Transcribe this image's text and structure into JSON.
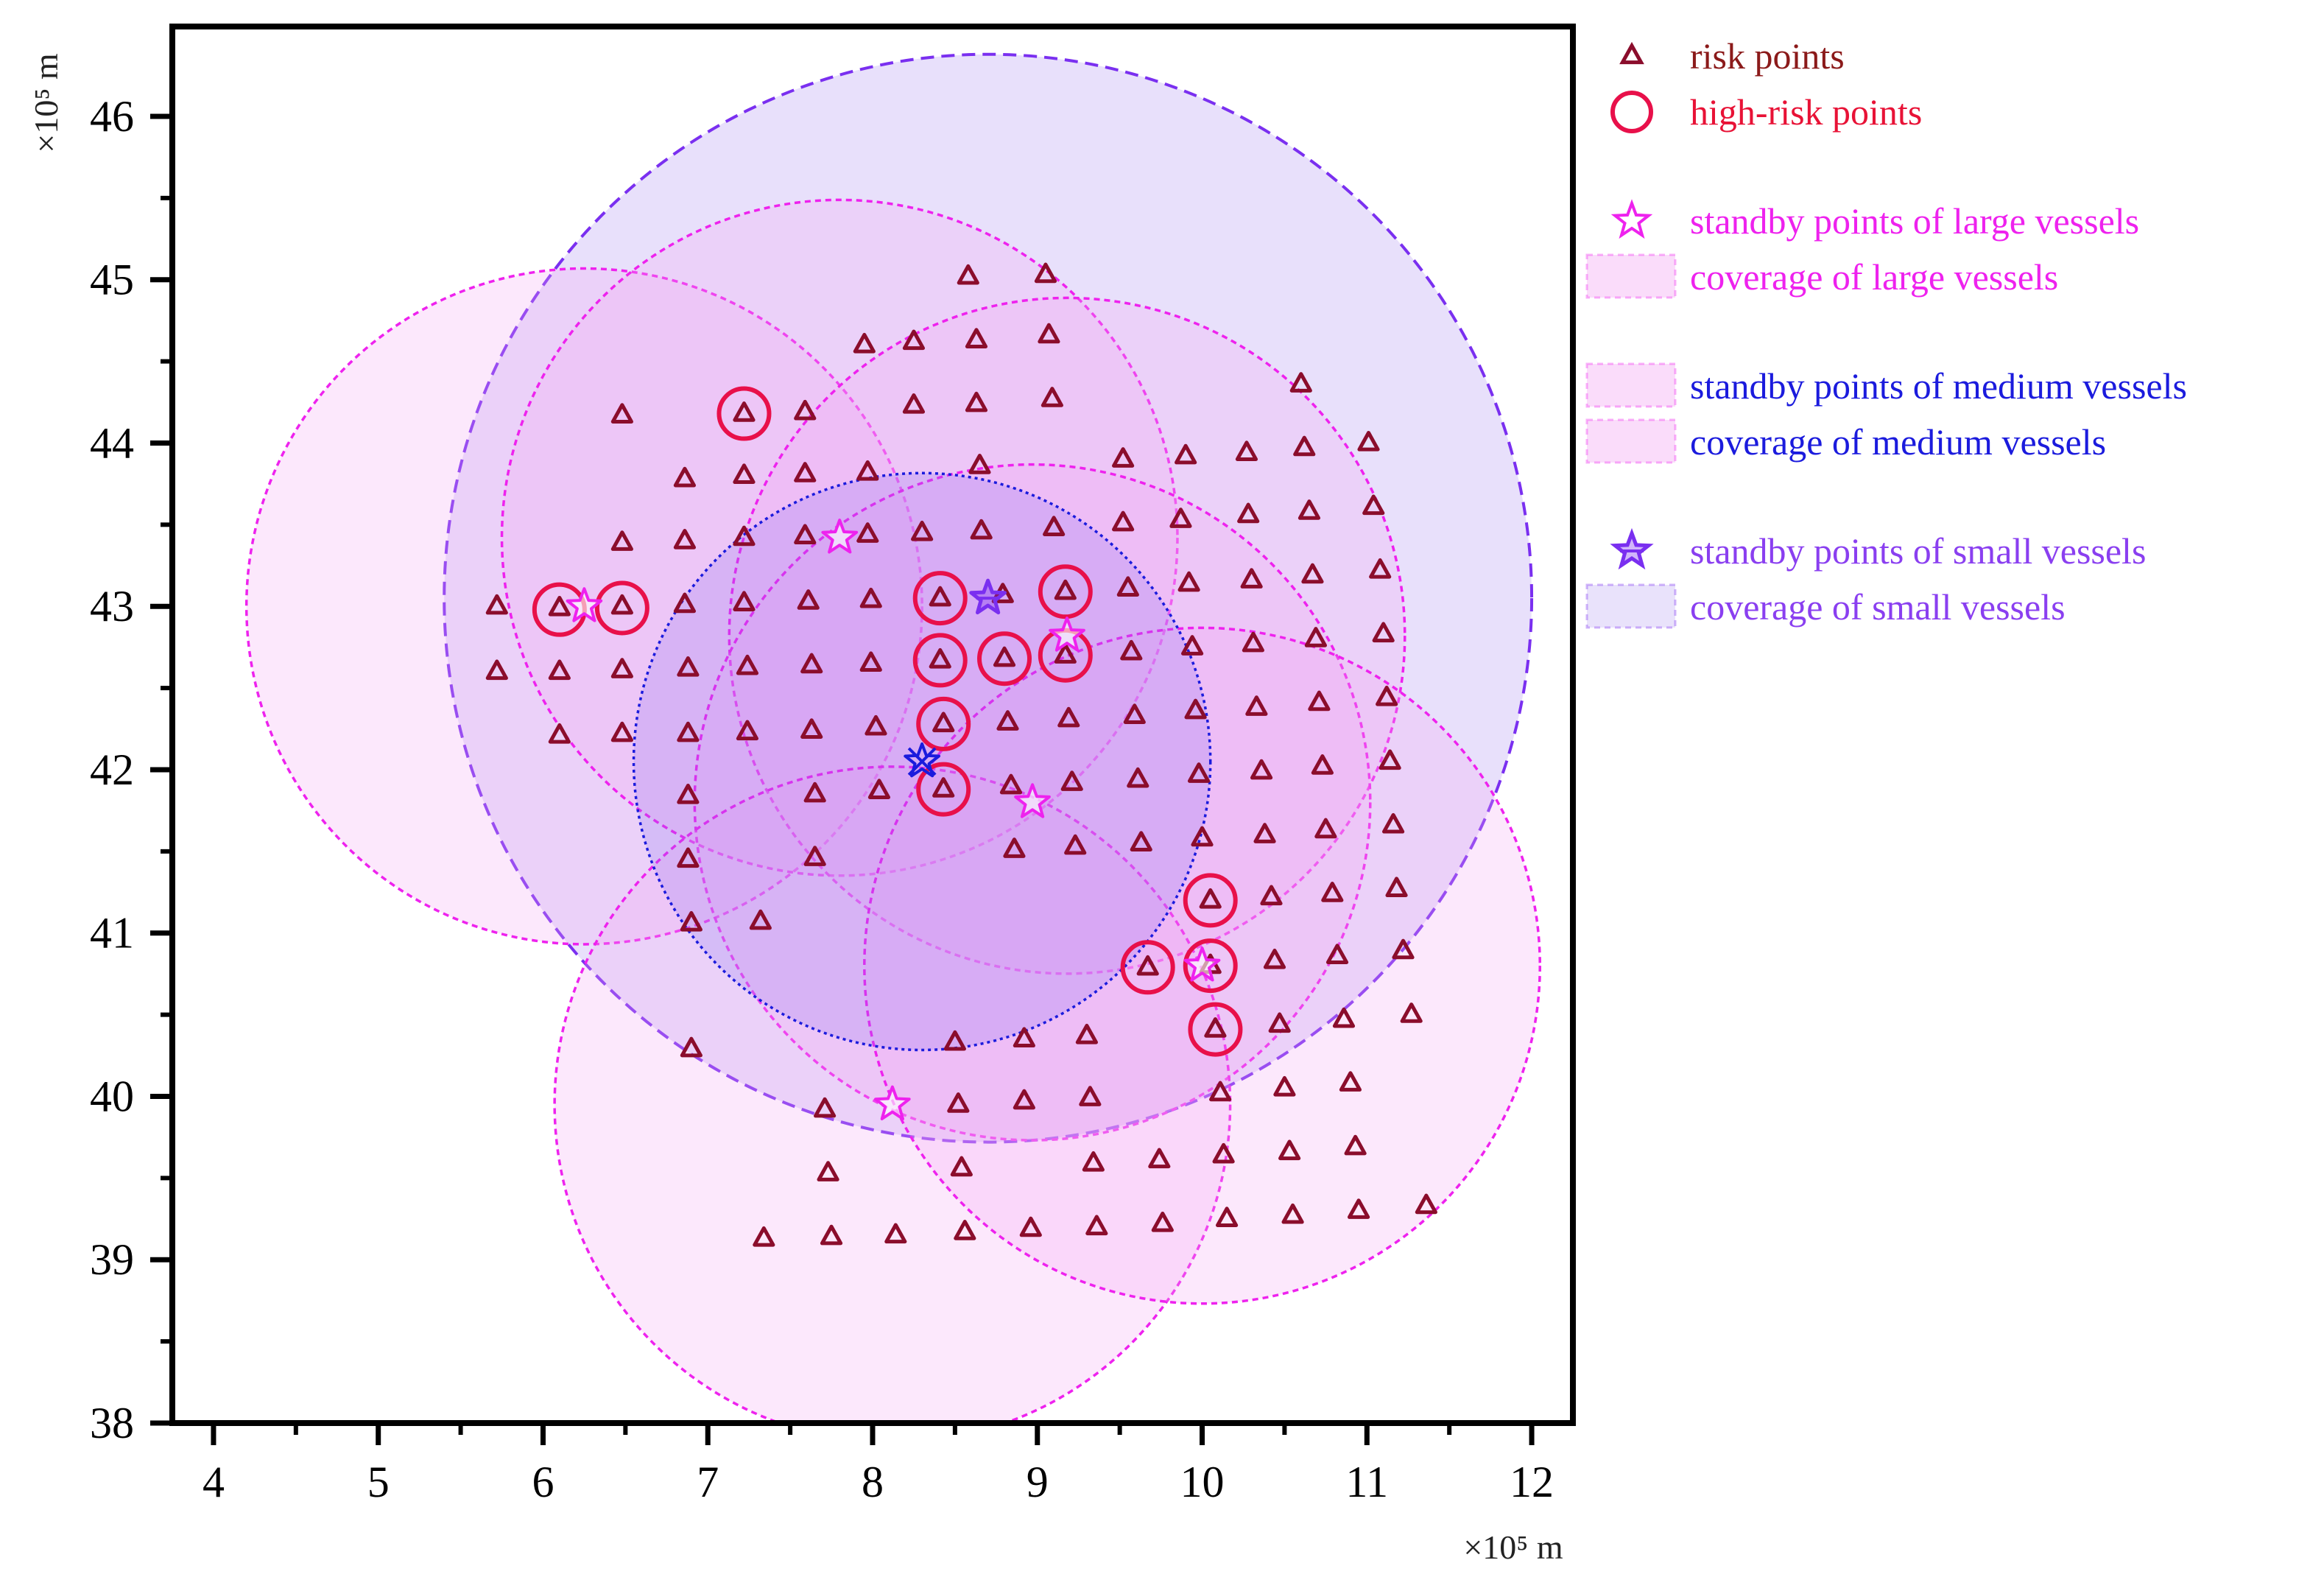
{
  "chart_data": {
    "type": "scatter",
    "title": "",
    "xlabel": "×10⁵ m",
    "ylabel": "×10⁵ m",
    "xlim": [
      3.75,
      12.25
    ],
    "ylim": [
      38,
      46.55
    ],
    "x_ticks": [
      "4",
      "5",
      "6",
      "7",
      "8",
      "9",
      "10",
      "11",
      "12"
    ],
    "y_ticks": [
      "38",
      "39",
      "40",
      "41",
      "42",
      "43",
      "44",
      "45",
      "46"
    ],
    "grid": false,
    "legend_position": "right-outside",
    "colors": {
      "risk": "#8b0d2c",
      "high_risk": "#e8104a",
      "large": "#ee22ee",
      "medium": "#1b1bdd",
      "small": "#7a2ff0",
      "large_fill": "#f3a8f3",
      "small_fill": "#c9b6f6"
    },
    "legend": [
      {
        "key": "risk",
        "label": "risk points",
        "color": "#8b1a1a"
      },
      {
        "key": "high_risk",
        "label": "high-risk points",
        "color": "#e81236"
      },
      {
        "key": "large_standby",
        "label": "standby points of large vessels",
        "color": "#ee22ee"
      },
      {
        "key": "large_coverage",
        "label": "coverage of large vessels",
        "color": "#ee22ee"
      },
      {
        "key": "medium_standby",
        "label": "standby points of medium vessels",
        "color": "#1b1bdd"
      },
      {
        "key": "medium_coverage",
        "label": "coverage of medium vessels",
        "color": "#1b1bdd"
      },
      {
        "key": "small_standby",
        "label": "standby points of small vessels",
        "color": "#8a3ff0"
      },
      {
        "key": "small_coverage",
        "label": "coverage of small vessels",
        "color": "#8a3ff0"
      }
    ],
    "coverage_large": [
      {
        "cx": 6.25,
        "cy": 43.0,
        "r": 2.05
      },
      {
        "cx": 7.8,
        "cy": 43.42,
        "r": 2.05
      },
      {
        "cx": 9.18,
        "cy": 42.82,
        "r": 2.05
      },
      {
        "cx": 8.97,
        "cy": 41.8,
        "r": 2.05
      },
      {
        "cx": 8.12,
        "cy": 39.95,
        "r": 2.05
      },
      {
        "cx": 10.0,
        "cy": 40.8,
        "r": 2.05
      }
    ],
    "coverage_medium": [
      {
        "cx": 8.3,
        "cy": 42.05,
        "r": 1.75
      }
    ],
    "coverage_small": [
      {
        "cx": 8.7,
        "cy": 43.05,
        "r": 3.3
      }
    ],
    "standby_large": [
      {
        "x": 6.25,
        "y": 43.0
      },
      {
        "x": 7.8,
        "y": 43.42
      },
      {
        "x": 9.18,
        "y": 42.82
      },
      {
        "x": 8.97,
        "y": 41.8
      },
      {
        "x": 8.12,
        "y": 39.95
      },
      {
        "x": 10.0,
        "y": 40.8
      }
    ],
    "standby_medium": [
      {
        "x": 8.3,
        "y": 42.05
      }
    ],
    "standby_small": [
      {
        "x": 8.7,
        "y": 43.05
      }
    ],
    "high_risk_points": [
      {
        "x": 7.22,
        "y": 44.18
      },
      {
        "x": 6.1,
        "y": 42.98
      },
      {
        "x": 6.48,
        "y": 42.99
      },
      {
        "x": 8.41,
        "y": 43.05
      },
      {
        "x": 9.17,
        "y": 43.09
      },
      {
        "x": 8.41,
        "y": 42.67
      },
      {
        "x": 8.8,
        "y": 42.68
      },
      {
        "x": 9.17,
        "y": 42.7
      },
      {
        "x": 8.43,
        "y": 42.28
      },
      {
        "x": 8.43,
        "y": 41.88
      },
      {
        "x": 10.05,
        "y": 41.2
      },
      {
        "x": 9.67,
        "y": 40.79
      },
      {
        "x": 10.05,
        "y": 40.8
      },
      {
        "x": 10.08,
        "y": 40.41
      }
    ],
    "risk_points": [
      {
        "x": 8.58,
        "y": 45.02
      },
      {
        "x": 9.05,
        "y": 45.03
      },
      {
        "x": 7.95,
        "y": 44.6
      },
      {
        "x": 8.25,
        "y": 44.62
      },
      {
        "x": 8.63,
        "y": 44.63
      },
      {
        "x": 9.07,
        "y": 44.66
      },
      {
        "x": 6.48,
        "y": 44.17
      },
      {
        "x": 7.22,
        "y": 44.18
      },
      {
        "x": 7.59,
        "y": 44.19
      },
      {
        "x": 8.25,
        "y": 44.23
      },
      {
        "x": 8.63,
        "y": 44.24
      },
      {
        "x": 9.09,
        "y": 44.27
      },
      {
        "x": 10.6,
        "y": 44.36
      },
      {
        "x": 6.86,
        "y": 43.78
      },
      {
        "x": 7.22,
        "y": 43.8
      },
      {
        "x": 7.59,
        "y": 43.81
      },
      {
        "x": 7.97,
        "y": 43.82
      },
      {
        "x": 8.65,
        "y": 43.86
      },
      {
        "x": 9.52,
        "y": 43.9
      },
      {
        "x": 9.9,
        "y": 43.92
      },
      {
        "x": 10.27,
        "y": 43.94
      },
      {
        "x": 10.62,
        "y": 43.97
      },
      {
        "x": 11.01,
        "y": 44.0
      },
      {
        "x": 6.48,
        "y": 43.39
      },
      {
        "x": 6.86,
        "y": 43.4
      },
      {
        "x": 7.22,
        "y": 43.42
      },
      {
        "x": 7.59,
        "y": 43.43
      },
      {
        "x": 7.97,
        "y": 43.44
      },
      {
        "x": 8.3,
        "y": 43.45
      },
      {
        "x": 8.66,
        "y": 43.46
      },
      {
        "x": 9.1,
        "y": 43.48
      },
      {
        "x": 9.52,
        "y": 43.51
      },
      {
        "x": 9.87,
        "y": 43.53
      },
      {
        "x": 10.28,
        "y": 43.56
      },
      {
        "x": 10.65,
        "y": 43.58
      },
      {
        "x": 11.04,
        "y": 43.61
      },
      {
        "x": 5.72,
        "y": 43.0
      },
      {
        "x": 6.1,
        "y": 42.99
      },
      {
        "x": 6.48,
        "y": 43.0
      },
      {
        "x": 6.86,
        "y": 43.01
      },
      {
        "x": 7.22,
        "y": 43.02
      },
      {
        "x": 7.61,
        "y": 43.03
      },
      {
        "x": 7.99,
        "y": 43.04
      },
      {
        "x": 8.41,
        "y": 43.05
      },
      {
        "x": 8.79,
        "y": 43.07
      },
      {
        "x": 9.17,
        "y": 43.09
      },
      {
        "x": 9.55,
        "y": 43.11
      },
      {
        "x": 9.92,
        "y": 43.14
      },
      {
        "x": 10.3,
        "y": 43.16
      },
      {
        "x": 10.67,
        "y": 43.19
      },
      {
        "x": 11.08,
        "y": 43.22
      },
      {
        "x": 5.72,
        "y": 42.6
      },
      {
        "x": 6.1,
        "y": 42.6
      },
      {
        "x": 6.48,
        "y": 42.61
      },
      {
        "x": 6.88,
        "y": 42.62
      },
      {
        "x": 7.24,
        "y": 42.63
      },
      {
        "x": 7.63,
        "y": 42.64
      },
      {
        "x": 7.99,
        "y": 42.65
      },
      {
        "x": 8.41,
        "y": 42.67
      },
      {
        "x": 8.8,
        "y": 42.68
      },
      {
        "x": 9.17,
        "y": 42.7
      },
      {
        "x": 9.57,
        "y": 42.72
      },
      {
        "x": 9.94,
        "y": 42.75
      },
      {
        "x": 10.31,
        "y": 42.77
      },
      {
        "x": 10.69,
        "y": 42.8
      },
      {
        "x": 11.1,
        "y": 42.83
      },
      {
        "x": 6.1,
        "y": 42.21
      },
      {
        "x": 6.48,
        "y": 42.22
      },
      {
        "x": 6.88,
        "y": 42.22
      },
      {
        "x": 7.24,
        "y": 42.23
      },
      {
        "x": 7.63,
        "y": 42.24
      },
      {
        "x": 8.02,
        "y": 42.26
      },
      {
        "x": 8.43,
        "y": 42.28
      },
      {
        "x": 8.82,
        "y": 42.29
      },
      {
        "x": 9.19,
        "y": 42.31
      },
      {
        "x": 9.59,
        "y": 42.33
      },
      {
        "x": 9.96,
        "y": 42.36
      },
      {
        "x": 10.33,
        "y": 42.38
      },
      {
        "x": 10.71,
        "y": 42.41
      },
      {
        "x": 11.12,
        "y": 42.44
      },
      {
        "x": 6.88,
        "y": 41.84
      },
      {
        "x": 7.65,
        "y": 41.85
      },
      {
        "x": 8.04,
        "y": 41.87
      },
      {
        "x": 8.43,
        "y": 41.88
      },
      {
        "x": 8.84,
        "y": 41.9
      },
      {
        "x": 9.21,
        "y": 41.92
      },
      {
        "x": 9.61,
        "y": 41.94
      },
      {
        "x": 9.98,
        "y": 41.97
      },
      {
        "x": 10.36,
        "y": 41.99
      },
      {
        "x": 10.73,
        "y": 42.02
      },
      {
        "x": 11.14,
        "y": 42.05
      },
      {
        "x": 6.88,
        "y": 41.45
      },
      {
        "x": 7.65,
        "y": 41.46
      },
      {
        "x": 8.86,
        "y": 41.51
      },
      {
        "x": 9.23,
        "y": 41.53
      },
      {
        "x": 9.63,
        "y": 41.55
      },
      {
        "x": 10.0,
        "y": 41.58
      },
      {
        "x": 10.38,
        "y": 41.6
      },
      {
        "x": 10.75,
        "y": 41.63
      },
      {
        "x": 11.16,
        "y": 41.66
      },
      {
        "x": 6.9,
        "y": 41.06
      },
      {
        "x": 7.32,
        "y": 41.07
      },
      {
        "x": 10.05,
        "y": 41.2
      },
      {
        "x": 10.42,
        "y": 41.22
      },
      {
        "x": 10.79,
        "y": 41.24
      },
      {
        "x": 11.18,
        "y": 41.27
      },
      {
        "x": 9.67,
        "y": 40.79
      },
      {
        "x": 10.05,
        "y": 40.8
      },
      {
        "x": 10.44,
        "y": 40.83
      },
      {
        "x": 10.82,
        "y": 40.86
      },
      {
        "x": 11.22,
        "y": 40.89
      },
      {
        "x": 6.9,
        "y": 40.29
      },
      {
        "x": 8.5,
        "y": 40.33
      },
      {
        "x": 8.92,
        "y": 40.35
      },
      {
        "x": 9.3,
        "y": 40.37
      },
      {
        "x": 10.08,
        "y": 40.41
      },
      {
        "x": 10.47,
        "y": 40.44
      },
      {
        "x": 10.86,
        "y": 40.47
      },
      {
        "x": 11.27,
        "y": 40.5
      },
      {
        "x": 7.71,
        "y": 39.92
      },
      {
        "x": 8.52,
        "y": 39.95
      },
      {
        "x": 8.92,
        "y": 39.97
      },
      {
        "x": 9.32,
        "y": 39.99
      },
      {
        "x": 10.11,
        "y": 40.02
      },
      {
        "x": 10.5,
        "y": 40.05
      },
      {
        "x": 10.9,
        "y": 40.08
      },
      {
        "x": 7.73,
        "y": 39.53
      },
      {
        "x": 8.54,
        "y": 39.56
      },
      {
        "x": 9.34,
        "y": 39.59
      },
      {
        "x": 9.74,
        "y": 39.61
      },
      {
        "x": 10.13,
        "y": 39.64
      },
      {
        "x": 10.53,
        "y": 39.66
      },
      {
        "x": 10.93,
        "y": 39.69
      },
      {
        "x": 7.34,
        "y": 39.13
      },
      {
        "x": 7.75,
        "y": 39.14
      },
      {
        "x": 8.14,
        "y": 39.15
      },
      {
        "x": 8.56,
        "y": 39.17
      },
      {
        "x": 8.96,
        "y": 39.19
      },
      {
        "x": 9.36,
        "y": 39.2
      },
      {
        "x": 9.76,
        "y": 39.22
      },
      {
        "x": 10.15,
        "y": 39.25
      },
      {
        "x": 10.55,
        "y": 39.27
      },
      {
        "x": 10.95,
        "y": 39.3
      },
      {
        "x": 11.36,
        "y": 39.33
      }
    ]
  }
}
